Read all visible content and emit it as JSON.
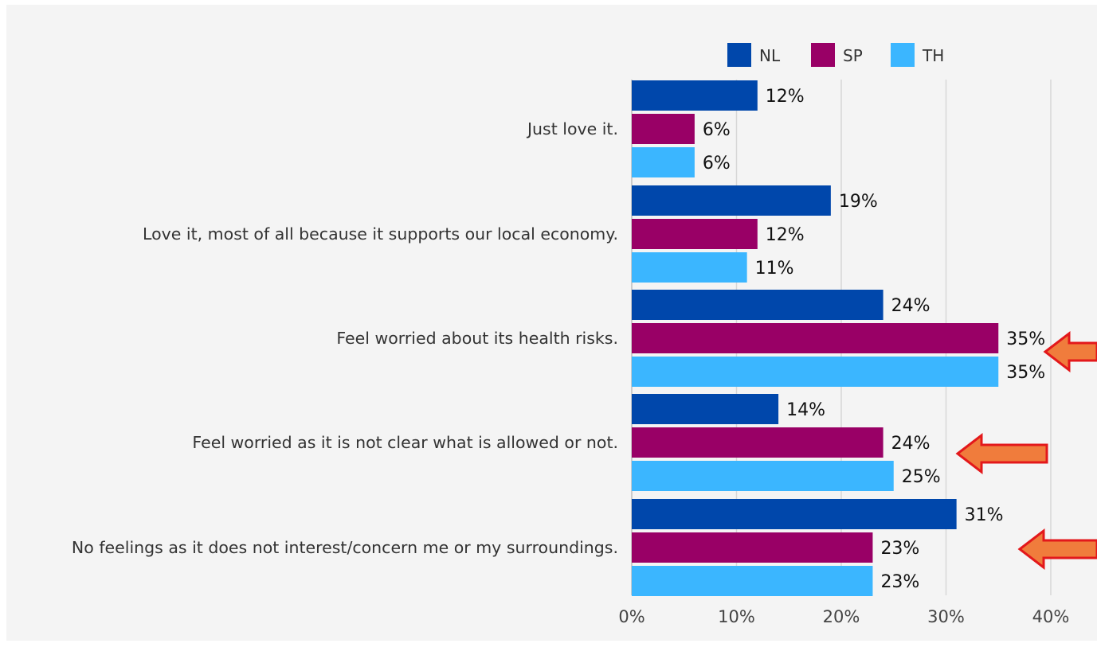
{
  "chart_data": {
    "type": "bar",
    "orientation": "horizontal",
    "categories": [
      "Just love it.",
      "Love it, most of all because it supports our local economy.",
      "Feel worried about its health risks.",
      "Feel worried as it is not clear what is allowed or not.",
      "No feelings as it does not interest/concern me or my surroundings."
    ],
    "series": [
      {
        "name": "NL",
        "color": "#0047ab",
        "values": [
          12,
          19,
          24,
          14,
          31
        ]
      },
      {
        "name": "SP",
        "color": "#990066",
        "values": [
          6,
          12,
          35,
          24,
          23
        ]
      },
      {
        "name": "TH",
        "color": "#3bb6ff",
        "values": [
          6,
          11,
          35,
          25,
          23
        ]
      }
    ],
    "value_suffix": "%",
    "x_ticks": [
      "0%",
      "10%",
      "20%",
      "30%",
      "40%"
    ],
    "xlim": [
      0,
      40
    ],
    "grid": "vertical",
    "legend_position": "top-right",
    "annotations": [
      {
        "type": "arrow-icon",
        "points_to": "Feel worried about its health risks.",
        "color": "#f07c3c",
        "outline": "#e3181b"
      },
      {
        "type": "arrow-icon",
        "points_to": "Feel worried as it is not clear what is allowed or not.",
        "color": "#f07c3c",
        "outline": "#e3181b"
      },
      {
        "type": "arrow-icon",
        "points_to": "No feelings as it does not interest/concern me or my surroundings.",
        "color": "#f07c3c",
        "outline": "#e3181b"
      }
    ],
    "background": "#f4f4f4"
  }
}
